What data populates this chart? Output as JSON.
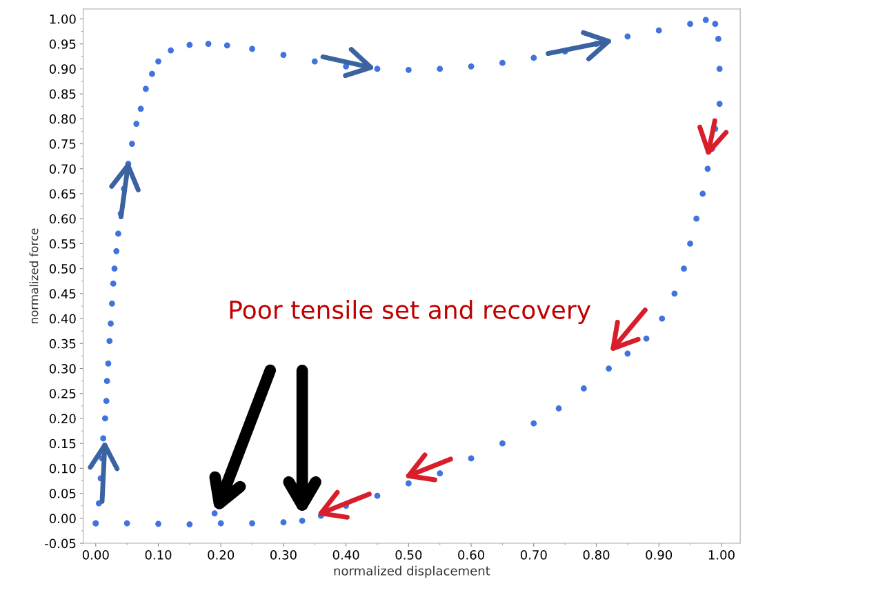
{
  "chart_data": {
    "type": "scatter",
    "xlabel": "normalized displacement",
    "ylabel": "normalized force",
    "annotations": [
      "Poor tensile set and recovery"
    ],
    "marker": "circle",
    "grid": false,
    "xlim": [
      -0.02,
      1.03
    ],
    "ylim": [
      -0.05,
      1.02
    ],
    "xticks": [
      {
        "value": 0,
        "label": "0.00"
      },
      {
        "value": 0.1,
        "label": "0.10"
      },
      {
        "value": 0.2,
        "label": "0.20"
      },
      {
        "value": 0.3,
        "label": "0.30"
      },
      {
        "value": 0.4,
        "label": "0.40"
      },
      {
        "value": 0.5,
        "label": "0.50"
      },
      {
        "value": 0.6,
        "label": "0.60"
      },
      {
        "value": 0.7,
        "label": "0.70"
      },
      {
        "value": 0.8,
        "label": "0.80"
      },
      {
        "value": 0.9,
        "label": "0.90"
      },
      {
        "value": 1,
        "label": "1.00"
      }
    ],
    "yticks": [
      {
        "value": -0.05,
        "label": "-0.05"
      },
      {
        "value": 0,
        "label": "0.00"
      },
      {
        "value": 0.05,
        "label": "0.05"
      },
      {
        "value": 0.1,
        "label": "0.10"
      },
      {
        "value": 0.15,
        "label": "0.15"
      },
      {
        "value": 0.2,
        "label": "0.20"
      },
      {
        "value": 0.25,
        "label": "0.25"
      },
      {
        "value": 0.3,
        "label": "0.30"
      },
      {
        "value": 0.35,
        "label": "0.35"
      },
      {
        "value": 0.4,
        "label": "0.40"
      },
      {
        "value": 0.45,
        "label": "0.45"
      },
      {
        "value": 0.5,
        "label": "0.50"
      },
      {
        "value": 0.55,
        "label": "0.55"
      },
      {
        "value": 0.6,
        "label": "0.60"
      },
      {
        "value": 0.65,
        "label": "0.65"
      },
      {
        "value": 0.7,
        "label": "0.70"
      },
      {
        "value": 0.75,
        "label": "0.75"
      },
      {
        "value": 0.8,
        "label": "0.80"
      },
      {
        "value": 0.85,
        "label": "0.85"
      },
      {
        "value": 0.9,
        "label": "0.90"
      },
      {
        "value": 0.95,
        "label": "0.95"
      },
      {
        "value": 1,
        "label": "1.00"
      }
    ],
    "series": [
      {
        "color": "#4173de",
        "x": [
          0.0,
          0.005,
          0.008,
          0.01,
          0.012,
          0.015,
          0.017,
          0.018,
          0.02,
          0.022,
          0.024,
          0.026,
          0.028,
          0.03,
          0.033,
          0.036,
          0.04,
          0.045,
          0.052,
          0.058,
          0.065,
          0.072,
          0.08,
          0.09,
          0.1,
          0.12,
          0.15,
          0.18,
          0.21,
          0.25,
          0.3,
          0.35,
          0.4,
          0.45,
          0.5,
          0.55,
          0.6,
          0.65,
          0.7,
          0.75,
          0.8,
          0.85,
          0.9,
          0.95,
          0.975,
          0.99,
          0.995,
          0.997,
          0.997,
          0.99,
          0.985,
          0.978,
          0.97,
          0.96,
          0.95,
          0.94,
          0.925,
          0.905,
          0.88,
          0.85,
          0.82,
          0.78,
          0.74,
          0.7,
          0.65,
          0.6,
          0.55,
          0.5,
          0.45,
          0.4,
          0.36,
          0.33,
          0.3,
          0.25,
          0.2,
          0.19,
          0.15,
          0.1,
          0.05,
          0.0
        ],
        "values": [
          -0.01,
          0.03,
          0.08,
          0.12,
          0.16,
          0.2,
          0.235,
          0.275,
          0.31,
          0.355,
          0.39,
          0.43,
          0.47,
          0.5,
          0.535,
          0.57,
          0.61,
          0.66,
          0.71,
          0.75,
          0.79,
          0.82,
          0.86,
          0.89,
          0.915,
          0.937,
          0.948,
          0.95,
          0.947,
          0.94,
          0.928,
          0.915,
          0.905,
          0.9,
          0.898,
          0.9,
          0.905,
          0.912,
          0.922,
          0.935,
          0.95,
          0.965,
          0.977,
          0.99,
          0.998,
          0.99,
          0.96,
          0.9,
          0.83,
          0.78,
          0.74,
          0.7,
          0.65,
          0.6,
          0.55,
          0.5,
          0.45,
          0.4,
          0.36,
          0.33,
          0.3,
          0.26,
          0.22,
          0.19,
          0.15,
          0.12,
          0.09,
          0.07,
          0.045,
          0.025,
          0.005,
          -0.005,
          -0.008,
          -0.01,
          -0.01,
          0.01,
          -0.012,
          -0.011,
          -0.01,
          -0.01
        ]
      }
    ]
  }
}
